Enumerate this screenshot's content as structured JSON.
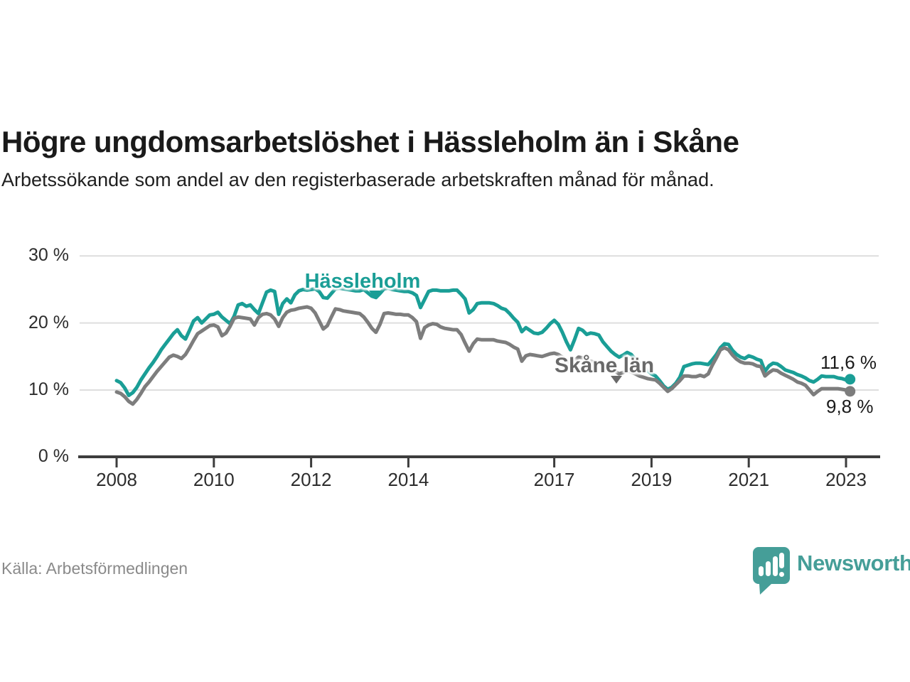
{
  "header": {
    "title": "Högre ungdomsarbetslöshet i Hässleholm än i Skåne",
    "subtitle": "Arbetssökande som andel av den registerbaserade arbetskraften månad för månad."
  },
  "chart_data": {
    "type": "line",
    "title": "Högre ungdomsarbetslöshet i Hässleholm än i Skåne",
    "subtitle": "Arbetssökande som andel av den registerbaserade arbetskraften månad för månad.",
    "unit": "%",
    "frequency": "monthly",
    "x_start": "2008-01",
    "x_end": "2023-02",
    "ylim": [
      0,
      30
    ],
    "y_gridlines": [
      10,
      20,
      30
    ],
    "y_tick_labels": [
      "0 %",
      "10 %",
      "20 %",
      "30 %"
    ],
    "x_ticks": [
      {
        "label": "2008",
        "month_index": 0
      },
      {
        "label": "2010",
        "month_index": 24
      },
      {
        "label": "2012",
        "month_index": 48
      },
      {
        "label": "2014",
        "month_index": 72
      },
      {
        "label": "2017",
        "month_index": 108
      },
      {
        "label": "2019",
        "month_index": 132
      },
      {
        "label": "2021",
        "month_index": 156
      },
      {
        "label": "2023",
        "month_index": 180
      }
    ],
    "grid": "horizontal",
    "legend_position": "inline-annotations",
    "series": [
      {
        "name": "Hässleholm",
        "color": "#1a9e96",
        "end_value_label": "11,6 %",
        "values": [
          11.4,
          11.1,
          10.3,
          9.2,
          9.6,
          10.4,
          11.5,
          12.4,
          13.3,
          14.1,
          15.0,
          16.0,
          16.8,
          17.6,
          18.4,
          19.0,
          18.1,
          17.6,
          18.9,
          20.3,
          20.8,
          20.0,
          20.6,
          21.2,
          21.3,
          21.6,
          20.9,
          20.4,
          19.9,
          21.0,
          22.7,
          22.9,
          22.5,
          22.7,
          22.0,
          21.4,
          23.0,
          24.6,
          24.9,
          24.7,
          21.3,
          22.9,
          23.6,
          23.0,
          24.2,
          24.8,
          25.0,
          24.9,
          25.0,
          25.1,
          24.7,
          23.8,
          23.7,
          24.4,
          25.1,
          25.2,
          25.1,
          25.0,
          24.9,
          24.8,
          24.8,
          25.0,
          24.5,
          24.0,
          23.8,
          24.4,
          25.1,
          25.2,
          25.0,
          24.9,
          24.8,
          24.7,
          24.7,
          24.5,
          24.1,
          22.3,
          23.5,
          24.7,
          24.9,
          24.9,
          24.8,
          24.8,
          24.8,
          24.9,
          24.9,
          24.3,
          23.6,
          21.5,
          22.0,
          22.9,
          23.0,
          23.0,
          23.0,
          22.9,
          22.6,
          22.2,
          22.0,
          21.4,
          20.7,
          20.1,
          18.7,
          19.3,
          18.9,
          18.5,
          18.4,
          18.6,
          19.2,
          19.9,
          20.4,
          19.8,
          18.6,
          17.2,
          16.0,
          17.5,
          19.2,
          18.9,
          18.3,
          18.5,
          18.4,
          18.2,
          17.2,
          16.5,
          15.8,
          15.3,
          14.9,
          15.2,
          15.6,
          15.3,
          14.6,
          14.0,
          13.4,
          12.9,
          12.4,
          12.1,
          11.4,
          10.6,
          10.1,
          10.4,
          11.0,
          11.9,
          13.5,
          13.7,
          13.9,
          14.0,
          14.0,
          13.9,
          13.8,
          14.5,
          15.3,
          16.3,
          16.9,
          16.8,
          15.9,
          15.3,
          14.9,
          14.7,
          15.1,
          14.9,
          14.6,
          14.4,
          12.8,
          13.6,
          14.0,
          13.9,
          13.5,
          13.0,
          12.8,
          12.6,
          12.3,
          12.1,
          11.8,
          11.4,
          11.2,
          11.6,
          12.1,
          12.0,
          12.0,
          12.0,
          11.8,
          11.7,
          11.5,
          11.6
        ]
      },
      {
        "name": "Skåne län",
        "color": "#7d7d7d",
        "end_value_label": "9,8 %",
        "values": [
          9.7,
          9.5,
          9.0,
          8.3,
          7.9,
          8.6,
          9.5,
          10.5,
          11.2,
          12.0,
          12.8,
          13.5,
          14.2,
          14.9,
          15.2,
          15.0,
          14.7,
          15.3,
          16.3,
          17.4,
          18.4,
          18.8,
          19.2,
          19.6,
          19.7,
          19.4,
          18.1,
          18.5,
          19.5,
          20.7,
          20.9,
          20.8,
          20.7,
          20.6,
          19.7,
          20.8,
          21.3,
          21.4,
          21.2,
          20.6,
          19.5,
          20.8,
          21.6,
          21.9,
          22.0,
          22.2,
          22.3,
          22.4,
          22.2,
          21.5,
          20.3,
          19.1,
          19.6,
          20.9,
          22.1,
          22.0,
          21.8,
          21.7,
          21.6,
          21.5,
          21.4,
          20.9,
          20.1,
          19.2,
          18.6,
          19.8,
          21.4,
          21.5,
          21.4,
          21.3,
          21.3,
          21.2,
          21.2,
          20.8,
          20.2,
          17.7,
          19.3,
          19.7,
          19.9,
          19.8,
          19.4,
          19.2,
          19.1,
          19.0,
          19.0,
          18.3,
          17.0,
          15.8,
          16.9,
          17.6,
          17.5,
          17.5,
          17.5,
          17.5,
          17.3,
          17.2,
          17.1,
          16.8,
          16.4,
          16.1,
          14.3,
          15.1,
          15.3,
          15.2,
          15.1,
          15.0,
          15.2,
          15.4,
          15.5,
          15.3,
          14.9,
          14.4,
          14.0,
          14.4,
          14.9,
          14.8,
          14.5,
          14.3,
          14.1,
          13.9,
          13.7,
          13.4,
          13.1,
          12.8,
          12.4,
          12.6,
          12.9,
          12.7,
          12.4,
          12.1,
          11.9,
          11.7,
          11.6,
          11.5,
          11.0,
          10.4,
          9.8,
          10.2,
          10.8,
          11.4,
          12.1,
          12.1,
          12.0,
          12.0,
          12.2,
          12.0,
          12.4,
          13.7,
          14.8,
          16.0,
          16.3,
          16.0,
          15.2,
          14.6,
          14.2,
          14.0,
          14.0,
          13.9,
          13.6,
          13.5,
          12.1,
          12.6,
          13.0,
          12.9,
          12.5,
          12.2,
          11.9,
          11.6,
          11.2,
          11.0,
          10.7,
          10.0,
          9.3,
          9.8,
          10.2,
          10.2,
          10.2,
          10.2,
          10.2,
          10.1,
          10.0,
          9.8
        ]
      }
    ]
  },
  "annotations": {
    "hassleholm_label": "Hässleholm",
    "skane_label": "Skåne län",
    "end_value_hassleholm": "11,6 %",
    "end_value_skane": "9,8 %"
  },
  "footer": {
    "source": "Källa: Arbetsförmedlingen",
    "brand_name": "Newsworthy"
  },
  "colors": {
    "hassleholm_line": "#1a9e96",
    "skane_line": "#7d7d7d",
    "skane_label_text": "#696969",
    "grid": "#dedede",
    "axis": "#3d3d3d",
    "brand_teal": "#459e98",
    "end_label_text": "#1a1a1a"
  }
}
